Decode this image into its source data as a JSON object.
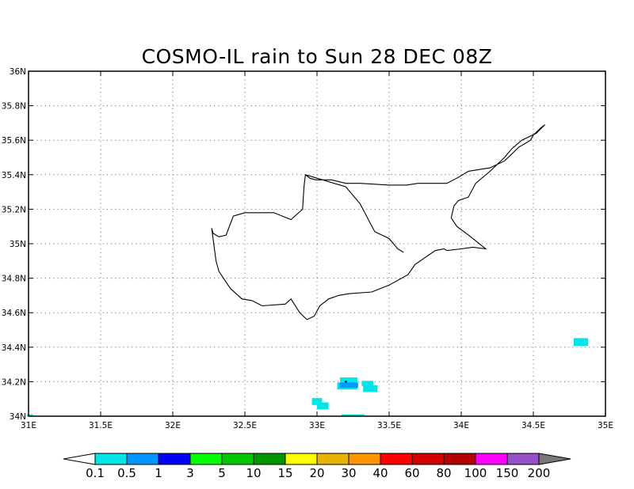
{
  "chart_data": {
    "type": "heatmap",
    "title": "COSMO-IL rain to Sun 28 DEC 08Z",
    "xlim": [
      31,
      35
    ],
    "ylim": [
      34,
      36
    ],
    "x_ticks": [
      31,
      31.5,
      32,
      32.5,
      33,
      33.5,
      34,
      34.5,
      35
    ],
    "x_tick_labels": [
      "31E",
      "31.5E",
      "32E",
      "32.5E",
      "33E",
      "33.5E",
      "34E",
      "34.5E",
      "35E"
    ],
    "y_ticks": [
      34,
      34.2,
      34.4,
      34.6,
      34.8,
      35,
      35.2,
      35.4,
      35.6,
      35.8,
      36
    ],
    "y_tick_labels": [
      "34N",
      "34.2N",
      "34.4N",
      "34.6N",
      "34.8N",
      "35N",
      "35.2N",
      "35.4N",
      "35.6N",
      "35.8N",
      "36N"
    ],
    "grid": true,
    "colorbar": {
      "labels": [
        "0.1",
        "0.5",
        "1",
        "3",
        "5",
        "10",
        "15",
        "20",
        "30",
        "40",
        "60",
        "80",
        "100",
        "150",
        "200"
      ],
      "colors": [
        "#ffffff",
        "#00e6e6",
        "#0096ff",
        "#0000f5",
        "#00ff00",
        "#00c800",
        "#009600",
        "#ffff00",
        "#e6b400",
        "#ff9600",
        "#ff0000",
        "#d20000",
        "#b40000",
        "#ff00ff",
        "#9650c8",
        "#787878"
      ]
    },
    "rain_cells": [
      {
        "lon": 34.83,
        "lat": 34.43,
        "dlon": 0.1,
        "dlat": 0.045,
        "color": "#00e6e6"
      },
      {
        "lon": 33.22,
        "lat": 34.205,
        "dlon": 0.12,
        "dlat": 0.04,
        "color": "#00e6e6"
      },
      {
        "lon": 33.21,
        "lat": 34.175,
        "dlon": 0.14,
        "dlat": 0.04,
        "color": "#00e6e6"
      },
      {
        "lon": 33.35,
        "lat": 34.19,
        "dlon": 0.08,
        "dlat": 0.03,
        "color": "#00e6e6"
      },
      {
        "lon": 33.37,
        "lat": 34.16,
        "dlon": 0.1,
        "dlat": 0.04,
        "color": "#00e6e6"
      },
      {
        "lon": 33.22,
        "lat": 34.18,
        "dlon": 0.13,
        "dlat": 0.03,
        "color": "#0096ff"
      },
      {
        "lon": 33.2,
        "lat": 34.2,
        "dlon": 0.015,
        "dlat": 0.013,
        "color": "#0000f5"
      },
      {
        "lon": 33.0,
        "lat": 34.085,
        "dlon": 0.07,
        "dlat": 0.04,
        "color": "#00e6e6"
      },
      {
        "lon": 33.04,
        "lat": 34.06,
        "dlon": 0.08,
        "dlat": 0.04,
        "color": "#00e6e6"
      },
      {
        "lon": 33.25,
        "lat": 34.005,
        "dlon": 0.16,
        "dlat": 0.012,
        "color": "#00e6e6"
      },
      {
        "lon": 31.01,
        "lat": 34.005,
        "dlon": 0.04,
        "dlat": 0.012,
        "color": "#00e6e6"
      }
    ],
    "coastline": [
      [
        33.6,
        34.95
      ],
      [
        33.56,
        34.97
      ],
      [
        33.5,
        35.03
      ],
      [
        33.4,
        35.07
      ],
      [
        33.3,
        35.23
      ],
      [
        33.2,
        35.33
      ],
      [
        33.0,
        35.38
      ],
      [
        32.92,
        35.4
      ],
      [
        32.91,
        35.33
      ],
      [
        32.9,
        35.2
      ],
      [
        32.82,
        35.14
      ],
      [
        32.7,
        35.18
      ],
      [
        32.5,
        35.18
      ],
      [
        32.42,
        35.16
      ],
      [
        32.37,
        35.05
      ],
      [
        32.32,
        35.04
      ],
      [
        32.28,
        35.06
      ],
      [
        32.27,
        35.09
      ],
      [
        32.3,
        34.9
      ],
      [
        32.32,
        34.84
      ],
      [
        32.4,
        34.74
      ],
      [
        32.48,
        34.68
      ],
      [
        32.55,
        34.67
      ],
      [
        32.62,
        34.64
      ],
      [
        32.78,
        34.65
      ],
      [
        32.82,
        34.68
      ],
      [
        32.88,
        34.6
      ],
      [
        32.93,
        34.56
      ],
      [
        32.98,
        34.58
      ],
      [
        33.02,
        34.64
      ],
      [
        33.08,
        34.68
      ],
      [
        33.15,
        34.7
      ],
      [
        33.22,
        34.71
      ],
      [
        33.38,
        34.72
      ],
      [
        33.5,
        34.76
      ],
      [
        33.63,
        34.82
      ],
      [
        33.68,
        34.88
      ],
      [
        33.82,
        34.96
      ],
      [
        33.88,
        34.97
      ],
      [
        33.9,
        34.96
      ],
      [
        34.0,
        34.97
      ],
      [
        34.08,
        34.98
      ],
      [
        34.17,
        34.97
      ],
      [
        34.05,
        35.05
      ],
      [
        33.97,
        35.1
      ],
      [
        33.93,
        35.15
      ],
      [
        33.95,
        35.22
      ],
      [
        33.98,
        35.25
      ],
      [
        34.05,
        35.27
      ],
      [
        34.1,
        35.35
      ],
      [
        34.2,
        35.42
      ],
      [
        34.3,
        35.5
      ],
      [
        34.35,
        35.55
      ],
      [
        34.42,
        35.6
      ],
      [
        34.52,
        35.64
      ],
      [
        34.58,
        35.69
      ],
      [
        34.55,
        35.67
      ],
      [
        34.5,
        35.63
      ],
      [
        34.48,
        35.6
      ],
      [
        34.4,
        35.56
      ],
      [
        34.3,
        35.48
      ],
      [
        34.2,
        35.44
      ],
      [
        34.05,
        35.42
      ],
      [
        33.97,
        35.38
      ],
      [
        33.9,
        35.35
      ],
      [
        33.7,
        35.35
      ],
      [
        33.62,
        35.34
      ],
      [
        33.5,
        35.34
      ],
      [
        33.3,
        35.35
      ],
      [
        33.2,
        35.35
      ],
      [
        33.1,
        35.37
      ],
      [
        32.99,
        35.37
      ],
      [
        32.95,
        35.38
      ],
      [
        32.92,
        35.4
      ]
    ]
  }
}
